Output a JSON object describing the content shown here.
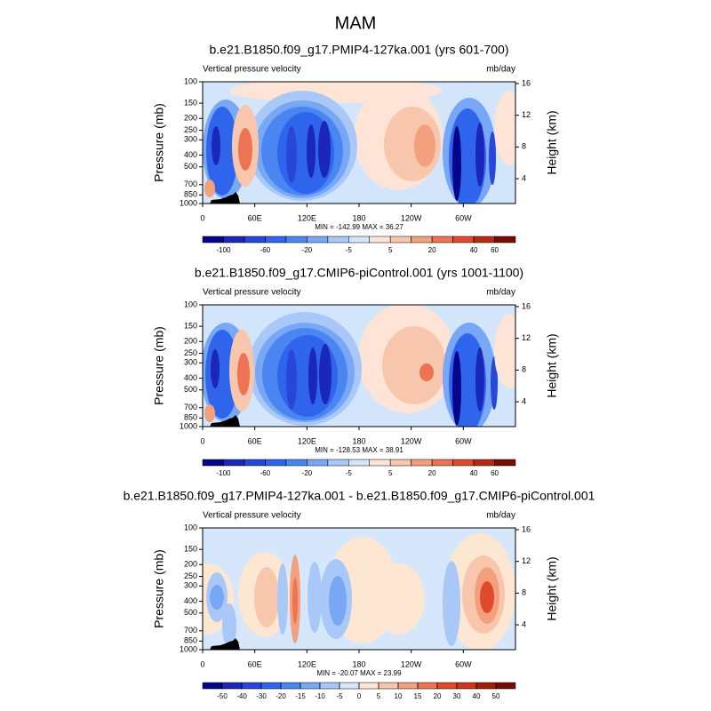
{
  "title": "MAM",
  "chart_data": [
    {
      "type": "contour",
      "title": "b.e21.B1850.f09_g17.PMIP4-127ka.001 (yrs 601-700)",
      "left_label": "Vertical pressure velocity",
      "right_label": "mb/day",
      "ylabel": "Pressure (mb)",
      "y2label": "Height (km)",
      "xlim": [
        0,
        360
      ],
      "xticks": [
        0,
        {
          "value": 60,
          "label": "60E"
        },
        {
          "value": 120,
          "label": "120E"
        },
        180,
        {
          "value": 240,
          "label": "120W"
        },
        {
          "value": 300,
          "label": "60W"
        }
      ],
      "ylim": [
        1000,
        100
      ],
      "ylog": true,
      "yticks": [
        100,
        150,
        200,
        250,
        300,
        400,
        500,
        700,
        850,
        1000
      ],
      "y2lim": [
        0.87,
        16.22
      ],
      "y2ticks": [
        4,
        8,
        12,
        16
      ],
      "stats": "MIN = -142.99  MAX =  36.27",
      "colorbar": {
        "levels": [
          -100,
          -80,
          -60,
          -40,
          -20,
          -10,
          -5,
          -2,
          5,
          10,
          20,
          30,
          40,
          60
        ],
        "ticks": [
          -100,
          -60,
          -20,
          -5,
          5,
          20,
          40,
          60
        ],
        "colors": [
          "#06068a",
          "#1a27b8",
          "#2847d6",
          "#2f64ec",
          "#4a86f2",
          "#77a7f5",
          "#a9c8f8",
          "#d3e5fb",
          "#fde4d6",
          "#f8c6ad",
          "#f3a07e",
          "#ec7452",
          "#de4b2c",
          "#b52a12",
          "#7a0b03"
        ]
      }
    },
    {
      "type": "contour",
      "title": "b.e21.B1850.f09_g17.CMIP6-piControl.001 (yrs 1001-1100)",
      "left_label": "Vertical pressure velocity",
      "right_label": "mb/day",
      "ylabel": "Pressure (mb)",
      "y2label": "Height (km)",
      "xlim": [
        0,
        360
      ],
      "xticks": [
        0,
        {
          "value": 60,
          "label": "60E"
        },
        {
          "value": 120,
          "label": "120E"
        },
        180,
        {
          "value": 240,
          "label": "120W"
        },
        {
          "value": 300,
          "label": "60W"
        }
      ],
      "ylim": [
        1000,
        100
      ],
      "ylog": true,
      "yticks": [
        100,
        150,
        200,
        250,
        300,
        400,
        500,
        700,
        850,
        1000
      ],
      "y2lim": [
        0.87,
        16.22
      ],
      "y2ticks": [
        4,
        8,
        12,
        16
      ],
      "stats": "MIN = -128.53  MAX =  38.91",
      "colorbar": {
        "levels": [
          -100,
          -80,
          -60,
          -40,
          -20,
          -10,
          -5,
          -2,
          5,
          10,
          20,
          30,
          40,
          60
        ],
        "ticks": [
          -100,
          -60,
          -20,
          -5,
          5,
          20,
          40,
          60
        ],
        "colors": [
          "#06068a",
          "#1a27b8",
          "#2847d6",
          "#2f64ec",
          "#4a86f2",
          "#77a7f5",
          "#a9c8f8",
          "#d3e5fb",
          "#fde4d6",
          "#f8c6ad",
          "#f3a07e",
          "#ec7452",
          "#de4b2c",
          "#b52a12",
          "#7a0b03"
        ]
      }
    },
    {
      "type": "contour",
      "title": "b.e21.B1850.f09_g17.PMIP4-127ka.001 - b.e21.B1850.f09_g17.CMIP6-piControl.001",
      "left_label": "Vertical pressure velocity",
      "right_label": "mb/day",
      "ylabel": "Pressure (mb)",
      "y2label": "Height (km)",
      "xlim": [
        0,
        360
      ],
      "xticks": [
        0,
        {
          "value": 60,
          "label": "60E"
        },
        {
          "value": 120,
          "label": "120E"
        },
        180,
        {
          "value": 240,
          "label": "120W"
        },
        {
          "value": 300,
          "label": "60W"
        }
      ],
      "ylim": [
        1000,
        100
      ],
      "ylog": true,
      "yticks": [
        100,
        150,
        200,
        250,
        300,
        400,
        500,
        700,
        850,
        1000
      ],
      "y2lim": [
        0.87,
        16.22
      ],
      "y2ticks": [
        4,
        8,
        12,
        16
      ],
      "stats": "MIN = -20.07  MAX =  23.99",
      "colorbar": {
        "levels": [
          -50,
          -40,
          -30,
          -20,
          -15,
          -10,
          -5,
          0,
          5,
          10,
          15,
          20,
          30,
          40,
          50
        ],
        "ticks": [
          -50,
          -40,
          -30,
          -20,
          -15,
          -10,
          -5,
          0,
          5,
          10,
          15,
          20,
          30,
          40,
          50
        ],
        "colors": [
          "#06068a",
          "#1a27b8",
          "#2847d6",
          "#2f64ec",
          "#4a86f2",
          "#77a7f5",
          "#a9c8f8",
          "#d6e7fb",
          "#fde6d2",
          "#f8c6ad",
          "#f3a07e",
          "#ec7452",
          "#de4b2c",
          "#c8381a",
          "#a01f0a",
          "#7a0b03"
        ]
      }
    }
  ]
}
